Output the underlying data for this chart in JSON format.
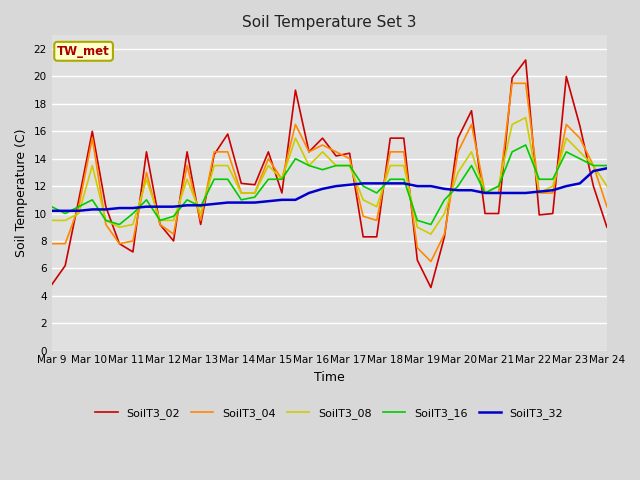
{
  "title": "Soil Temperature Set 3",
  "xlabel": "Time",
  "ylabel": "Soil Temperature (C)",
  "ylim": [
    0,
    23
  ],
  "yticks": [
    0,
    2,
    4,
    6,
    8,
    10,
    12,
    14,
    16,
    18,
    20,
    22
  ],
  "x_labels": [
    "Mar 9",
    "Mar 10",
    "Mar 11",
    "Mar 12",
    "Mar 13",
    "Mar 14",
    "Mar 15",
    "Mar 16",
    "Mar 17",
    "Mar 18",
    "Mar 19",
    "Mar 20",
    "Mar 21",
    "Mar 22",
    "Mar 23",
    "Mar 24"
  ],
  "fig_color": "#d8d8d8",
  "plot_bg": "#e0e0e0",
  "grid_color": "#ffffff",
  "annotation_text": "TW_met",
  "annotation_bg": "#ffffcc",
  "annotation_fg": "#aa0000",
  "series_order": [
    "SoilT3_02",
    "SoilT3_04",
    "SoilT3_08",
    "SoilT3_16",
    "SoilT3_32"
  ],
  "series_colors": {
    "SoilT3_02": "#cc0000",
    "SoilT3_04": "#ff8800",
    "SoilT3_08": "#cccc00",
    "SoilT3_16": "#00cc00",
    "SoilT3_32": "#0000cc"
  },
  "series_lw": {
    "SoilT3_02": 1.2,
    "SoilT3_04": 1.2,
    "SoilT3_08": 1.2,
    "SoilT3_16": 1.2,
    "SoilT3_32": 1.8
  },
  "SoilT3_02": [
    4.8,
    6.2,
    11.0,
    16.0,
    10.5,
    7.8,
    7.2,
    14.5,
    9.2,
    8.0,
    14.5,
    9.2,
    14.3,
    15.8,
    12.2,
    12.1,
    14.5,
    11.5,
    19.0,
    14.5,
    15.5,
    14.2,
    14.4,
    8.3,
    8.3,
    15.5,
    15.5,
    6.6,
    4.6,
    8.3,
    15.5,
    17.5,
    10.0,
    10.0,
    19.9,
    21.2,
    9.9,
    10.0,
    20.0,
    16.4,
    12.0,
    9.0
  ],
  "SoilT3_04": [
    7.8,
    7.8,
    10.5,
    15.5,
    9.2,
    7.8,
    8.0,
    13.0,
    9.2,
    8.5,
    13.5,
    9.5,
    14.5,
    14.5,
    11.5,
    11.5,
    14.0,
    12.5,
    16.5,
    14.5,
    15.0,
    14.5,
    14.0,
    9.8,
    9.5,
    14.5,
    14.5,
    7.5,
    6.5,
    8.5,
    14.5,
    16.5,
    11.5,
    11.5,
    19.5,
    19.5,
    11.5,
    11.5,
    16.5,
    15.5,
    13.5,
    10.5
  ],
  "SoilT3_08": [
    9.5,
    9.5,
    10.0,
    13.5,
    9.5,
    9.0,
    9.2,
    12.5,
    9.5,
    9.5,
    12.5,
    10.0,
    13.5,
    13.5,
    11.5,
    11.5,
    13.5,
    12.5,
    15.5,
    13.5,
    14.5,
    13.5,
    13.5,
    11.0,
    10.5,
    13.5,
    13.5,
    9.0,
    8.5,
    10.0,
    13.0,
    14.5,
    11.5,
    12.0,
    16.5,
    17.0,
    11.5,
    12.0,
    15.5,
    14.5,
    13.5,
    12.0
  ],
  "SoilT3_16": [
    10.5,
    10.0,
    10.5,
    11.0,
    9.5,
    9.2,
    10.0,
    11.0,
    9.5,
    9.8,
    11.0,
    10.5,
    12.5,
    12.5,
    11.0,
    11.2,
    12.5,
    12.5,
    14.0,
    13.5,
    13.2,
    13.5,
    13.5,
    12.0,
    11.5,
    12.5,
    12.5,
    9.5,
    9.2,
    11.0,
    12.0,
    13.5,
    11.5,
    12.0,
    14.5,
    15.0,
    12.5,
    12.5,
    14.5,
    14.0,
    13.5,
    13.5
  ],
  "SoilT3_32": [
    10.2,
    10.2,
    10.2,
    10.3,
    10.3,
    10.4,
    10.4,
    10.5,
    10.5,
    10.5,
    10.6,
    10.6,
    10.7,
    10.8,
    10.8,
    10.8,
    10.9,
    11.0,
    11.0,
    11.5,
    11.8,
    12.0,
    12.1,
    12.2,
    12.2,
    12.2,
    12.2,
    12.0,
    12.0,
    11.8,
    11.7,
    11.7,
    11.5,
    11.5,
    11.5,
    11.5,
    11.6,
    11.7,
    12.0,
    12.2,
    13.1,
    13.3
  ]
}
